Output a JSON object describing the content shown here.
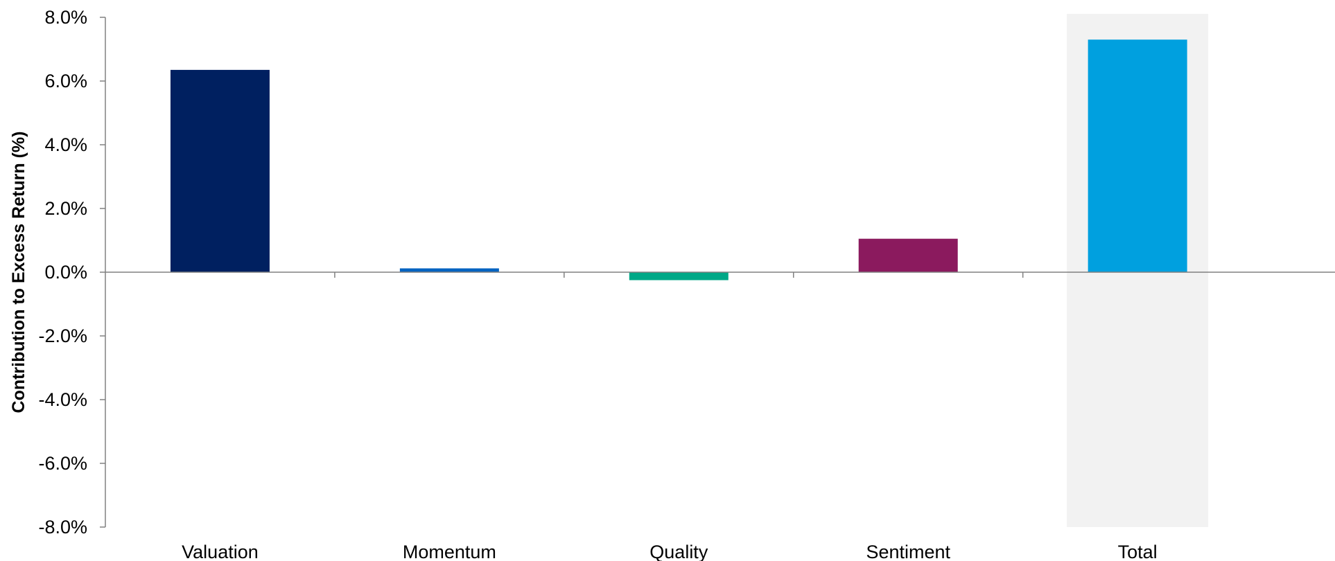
{
  "chart_data": {
    "type": "bar",
    "title": "",
    "xlabel": "",
    "ylabel": "Contribution to Excess Return (%)",
    "ylim": [
      -8.0,
      8.0
    ],
    "yticks": [
      8.0,
      6.0,
      4.0,
      2.0,
      0.0,
      -2.0,
      -4.0,
      -6.0,
      -8.0
    ],
    "ytick_labels": [
      "8.0%",
      "6.0%",
      "4.0%",
      "2.0%",
      "0.0%",
      "-2.0%",
      "-4.0%",
      "-6.0%",
      "-8.0%"
    ],
    "categories": [
      "Valuation",
      "Momentum",
      "Quality",
      "Sentiment",
      "Total"
    ],
    "values": [
      6.35,
      0.12,
      -0.25,
      1.05,
      7.3
    ],
    "bar_colors": [
      "#002060",
      "#0563C1",
      "#00A887",
      "#8B1A5E",
      "#00A0DF"
    ],
    "highlight": {
      "category": "Total",
      "color": "#F2F2F2"
    },
    "grid": false,
    "legend": "none"
  }
}
